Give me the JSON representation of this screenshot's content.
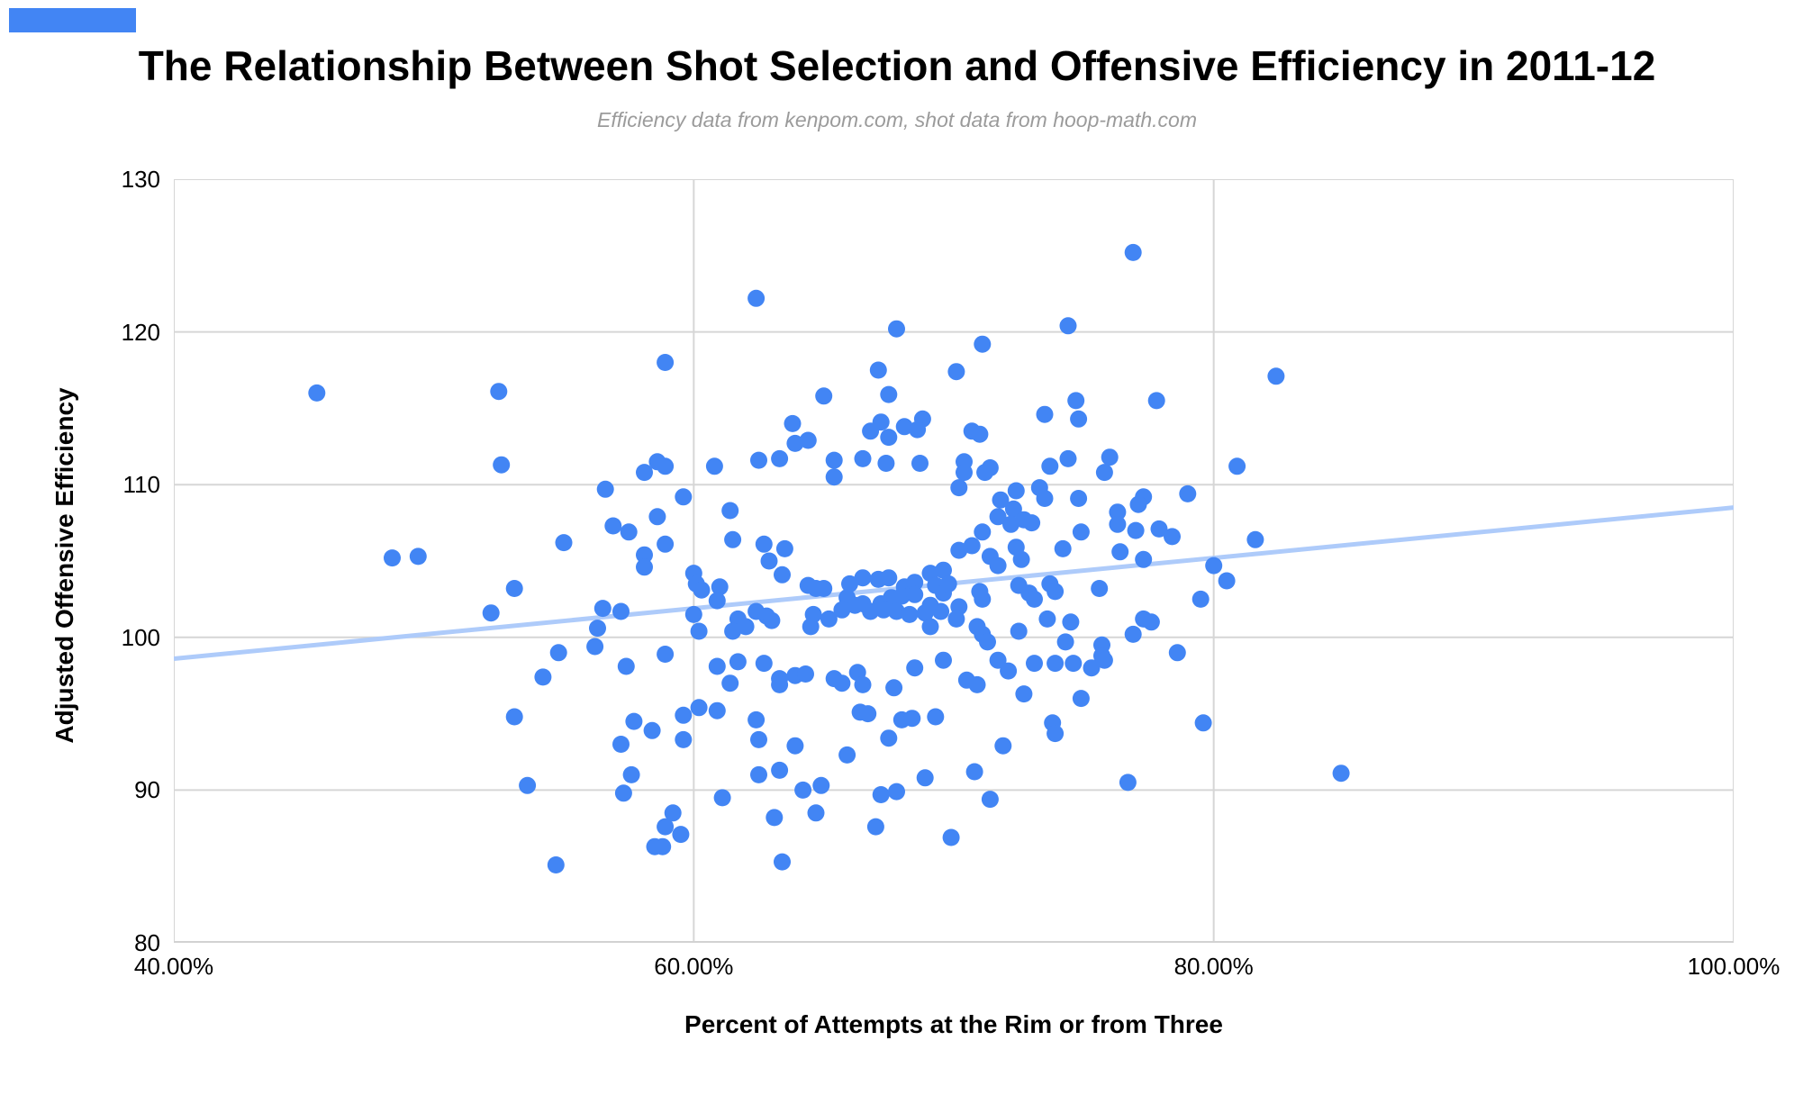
{
  "top_left_marker": {
    "color": "#4285f4"
  },
  "title": "The Relationship Between Shot Selection and Offensive Efficiency in 2011-12",
  "subtitle": "Efficiency data from kenpom.com, shot data from hoop-math.com",
  "chart_data": {
    "type": "scatter",
    "title": "The Relationship Between Shot Selection and Offensive Efficiency in 2011-12",
    "xlabel": "Percent of Attempts at the Rim or from Three",
    "ylabel": "Adjusted Offensive Efficiency",
    "xlim": [
      40,
      100
    ],
    "ylim": [
      80,
      130
    ],
    "grid": true,
    "x_ticks": [
      {
        "value": 40,
        "label": "40.00%"
      },
      {
        "value": 60,
        "label": "60.00%"
      },
      {
        "value": 80,
        "label": "80.00%"
      },
      {
        "value": 100,
        "label": "100.00%"
      }
    ],
    "y_ticks": [
      {
        "value": 80,
        "label": "80"
      },
      {
        "value": 90,
        "label": "90"
      },
      {
        "value": 100,
        "label": "100"
      },
      {
        "value": 110,
        "label": "110"
      },
      {
        "value": 120,
        "label": "120"
      },
      {
        "value": 130,
        "label": "130"
      }
    ],
    "point_color": "#4285f4",
    "point_radius": 9.5,
    "gridline_color": "#d6d6d6",
    "axis_line_color": "#d2d2d2",
    "trendline": {
      "x1": 40,
      "y1": 98.6,
      "x2": 100,
      "y2": 108.5,
      "color": "#aecbfa",
      "width": 5
    },
    "points": [
      [
        45.5,
        116.0
      ],
      [
        52.5,
        116.1
      ],
      [
        52.6,
        111.3
      ],
      [
        62.4,
        122.2
      ],
      [
        67.8,
        120.2
      ],
      [
        58.9,
        118.0
      ],
      [
        67.1,
        117.5
      ],
      [
        65.0,
        115.8
      ],
      [
        67.5,
        115.9
      ],
      [
        63.8,
        114.0
      ],
      [
        67.2,
        114.1
      ],
      [
        68.8,
        114.3
      ],
      [
        68.1,
        113.8
      ],
      [
        68.6,
        113.6
      ],
      [
        66.8,
        113.5
      ],
      [
        63.9,
        112.7
      ],
      [
        64.4,
        112.9
      ],
      [
        67.5,
        113.1
      ],
      [
        58.6,
        111.5
      ],
      [
        58.9,
        111.2
      ],
      [
        60.8,
        111.2
      ],
      [
        62.5,
        111.6
      ],
      [
        63.3,
        111.7
      ],
      [
        65.4,
        111.6
      ],
      [
        66.5,
        111.7
      ],
      [
        67.4,
        111.4
      ],
      [
        68.7,
        111.4
      ],
      [
        58.1,
        110.8
      ],
      [
        65.4,
        110.5
      ],
      [
        76.9,
        125.2
      ],
      [
        74.4,
        120.4
      ],
      [
        71.1,
        119.2
      ],
      [
        70.1,
        117.4
      ],
      [
        82.4,
        117.1
      ],
      [
        74.7,
        115.5
      ],
      [
        77.8,
        115.5
      ],
      [
        73.5,
        114.6
      ],
      [
        74.8,
        114.3
      ],
      [
        70.7,
        113.5
      ],
      [
        71.0,
        113.3
      ],
      [
        76.0,
        111.8
      ],
      [
        74.4,
        111.7
      ],
      [
        70.4,
        111.5
      ],
      [
        73.7,
        111.2
      ],
      [
        71.4,
        111.1
      ],
      [
        80.9,
        111.2
      ],
      [
        48.4,
        105.2
      ],
      [
        49.4,
        105.3
      ],
      [
        53.1,
        103.2
      ],
      [
        52.2,
        101.6
      ],
      [
        54.2,
        97.4
      ],
      [
        53.1,
        94.8
      ],
      [
        54.8,
        99.0
      ],
      [
        56.6,
        109.7
      ],
      [
        59.6,
        109.2
      ],
      [
        58.6,
        107.9
      ],
      [
        61.4,
        108.3
      ],
      [
        56.9,
        107.3
      ],
      [
        57.5,
        106.9
      ],
      [
        55.0,
        106.2
      ],
      [
        58.9,
        106.1
      ],
      [
        61.5,
        106.4
      ],
      [
        62.7,
        106.1
      ],
      [
        63.5,
        105.8
      ],
      [
        58.1,
        105.4
      ],
      [
        58.1,
        104.6
      ],
      [
        62.9,
        105.0
      ],
      [
        63.4,
        104.1
      ],
      [
        60.0,
        104.2
      ],
      [
        60.1,
        103.5
      ],
      [
        60.3,
        103.1
      ],
      [
        61.0,
        103.3
      ],
      [
        60.9,
        102.4
      ],
      [
        64.4,
        103.4
      ],
      [
        64.7,
        103.2
      ],
      [
        65.0,
        103.2
      ],
      [
        66.0,
        103.5
      ],
      [
        66.5,
        103.9
      ],
      [
        67.1,
        103.8
      ],
      [
        67.5,
        103.9
      ],
      [
        68.1,
        103.3
      ],
      [
        68.5,
        103.6
      ],
      [
        69.1,
        104.2
      ],
      [
        69.6,
        104.4
      ],
      [
        69.3,
        103.4
      ],
      [
        65.9,
        102.6
      ],
      [
        66.5,
        102.2
      ],
      [
        67.2,
        102.2
      ],
      [
        67.6,
        102.6
      ],
      [
        68.0,
        102.7
      ],
      [
        68.5,
        102.8
      ],
      [
        69.1,
        102.1
      ],
      [
        69.6,
        102.9
      ],
      [
        56.5,
        101.9
      ],
      [
        57.2,
        101.7
      ],
      [
        56.3,
        100.6
      ],
      [
        60.0,
        101.5
      ],
      [
        60.2,
        100.4
      ],
      [
        61.7,
        101.2
      ],
      [
        62.0,
        100.7
      ],
      [
        62.4,
        101.7
      ],
      [
        62.8,
        101.4
      ],
      [
        63.0,
        101.1
      ],
      [
        61.5,
        100.4
      ],
      [
        64.6,
        101.5
      ],
      [
        65.2,
        101.2
      ],
      [
        65.7,
        101.8
      ],
      [
        66.2,
        102.1
      ],
      [
        66.8,
        101.7
      ],
      [
        67.3,
        101.8
      ],
      [
        67.8,
        101.7
      ],
      [
        68.3,
        101.5
      ],
      [
        68.9,
        101.6
      ],
      [
        69.5,
        101.7
      ],
      [
        64.5,
        100.7
      ],
      [
        69.1,
        100.7
      ],
      [
        56.2,
        99.4
      ],
      [
        57.4,
        98.1
      ],
      [
        58.9,
        98.9
      ],
      [
        60.9,
        98.1
      ],
      [
        61.7,
        98.4
      ],
      [
        62.7,
        98.3
      ],
      [
        63.3,
        97.3
      ],
      [
        63.3,
        96.9
      ],
      [
        63.9,
        97.5
      ],
      [
        64.3,
        97.6
      ],
      [
        61.4,
        97.0
      ],
      [
        65.4,
        97.3
      ],
      [
        65.7,
        97.0
      ],
      [
        66.3,
        97.7
      ],
      [
        66.5,
        96.9
      ],
      [
        67.7,
        96.7
      ],
      [
        68.5,
        98.0
      ],
      [
        69.6,
        98.5
      ],
      [
        60.2,
        95.4
      ],
      [
        60.9,
        95.2
      ],
      [
        59.6,
        94.9
      ],
      [
        59.6,
        93.3
      ],
      [
        57.7,
        94.5
      ],
      [
        58.4,
        93.9
      ],
      [
        57.2,
        93.0
      ],
      [
        62.4,
        94.6
      ],
      [
        62.5,
        93.3
      ],
      [
        63.9,
        92.9
      ],
      [
        66.4,
        95.1
      ],
      [
        66.7,
        95.0
      ],
      [
        68.0,
        94.6
      ],
      [
        68.4,
        94.7
      ],
      [
        65.9,
        92.3
      ],
      [
        67.5,
        93.4
      ],
      [
        69.3,
        94.8
      ],
      [
        70.4,
        110.8
      ],
      [
        70.2,
        109.8
      ],
      [
        71.2,
        110.8
      ],
      [
        75.8,
        110.8
      ],
      [
        72.4,
        109.6
      ],
      [
        73.3,
        109.8
      ],
      [
        73.5,
        109.1
      ],
      [
        79.0,
        109.4
      ],
      [
        74.8,
        109.1
      ],
      [
        77.3,
        109.2
      ],
      [
        77.1,
        108.7
      ],
      [
        71.8,
        109.0
      ],
      [
        71.7,
        107.9
      ],
      [
        72.3,
        108.4
      ],
      [
        72.2,
        107.4
      ],
      [
        72.7,
        107.7
      ],
      [
        73.0,
        107.5
      ],
      [
        71.1,
        106.9
      ],
      [
        76.3,
        108.2
      ],
      [
        76.3,
        107.4
      ],
      [
        74.9,
        106.9
      ],
      [
        77.0,
        107.0
      ],
      [
        77.9,
        107.1
      ],
      [
        78.4,
        106.6
      ],
      [
        81.6,
        106.4
      ],
      [
        70.7,
        106.0
      ],
      [
        70.2,
        105.7
      ],
      [
        69.8,
        103.5
      ],
      [
        71.4,
        105.3
      ],
      [
        71.7,
        104.7
      ],
      [
        72.4,
        105.9
      ],
      [
        72.6,
        105.1
      ],
      [
        74.2,
        105.8
      ],
      [
        76.4,
        105.6
      ],
      [
        77.3,
        105.1
      ],
      [
        80.0,
        104.7
      ],
      [
        80.5,
        103.7
      ],
      [
        72.5,
        103.4
      ],
      [
        72.9,
        102.9
      ],
      [
        73.1,
        102.5
      ],
      [
        73.7,
        103.5
      ],
      [
        73.9,
        103.0
      ],
      [
        75.6,
        103.2
      ],
      [
        79.5,
        102.5
      ],
      [
        71.0,
        103.0
      ],
      [
        71.1,
        102.5
      ],
      [
        70.2,
        102.0
      ],
      [
        70.1,
        101.2
      ],
      [
        70.9,
        100.7
      ],
      [
        71.1,
        100.2
      ],
      [
        71.3,
        99.7
      ],
      [
        72.5,
        100.4
      ],
      [
        73.6,
        101.2
      ],
      [
        74.5,
        101.0
      ],
      [
        77.3,
        101.2
      ],
      [
        77.6,
        101.0
      ],
      [
        76.9,
        100.2
      ],
      [
        74.3,
        99.7
      ],
      [
        75.7,
        99.5
      ],
      [
        75.7,
        98.8
      ],
      [
        78.6,
        99.0
      ],
      [
        71.7,
        98.5
      ],
      [
        72.1,
        97.8
      ],
      [
        73.1,
        98.3
      ],
      [
        73.9,
        98.3
      ],
      [
        74.6,
        98.3
      ],
      [
        75.3,
        98.0
      ],
      [
        75.8,
        98.5
      ],
      [
        70.5,
        97.2
      ],
      [
        70.9,
        96.9
      ],
      [
        72.7,
        96.3
      ],
      [
        74.9,
        96.0
      ],
      [
        73.8,
        94.4
      ],
      [
        73.9,
        93.7
      ],
      [
        79.6,
        94.4
      ],
      [
        71.9,
        92.9
      ],
      [
        53.6,
        90.3
      ],
      [
        54.7,
        85.1
      ],
      [
        57.6,
        91.0
      ],
      [
        57.3,
        89.8
      ],
      [
        59.2,
        88.5
      ],
      [
        58.9,
        87.6
      ],
      [
        59.5,
        87.1
      ],
      [
        58.5,
        86.3
      ],
      [
        58.8,
        86.3
      ],
      [
        61.1,
        89.5
      ],
      [
        62.5,
        91.0
      ],
      [
        63.3,
        91.3
      ],
      [
        64.2,
        90.0
      ],
      [
        64.9,
        90.3
      ],
      [
        63.1,
        88.2
      ],
      [
        64.7,
        88.5
      ],
      [
        63.4,
        85.3
      ],
      [
        67.0,
        87.6
      ],
      [
        67.2,
        89.7
      ],
      [
        67.8,
        89.9
      ],
      [
        68.9,
        90.8
      ],
      [
        70.8,
        91.2
      ],
      [
        76.7,
        90.5
      ],
      [
        71.4,
        89.4
      ],
      [
        69.9,
        86.9
      ],
      [
        84.9,
        91.1
      ]
    ]
  }
}
